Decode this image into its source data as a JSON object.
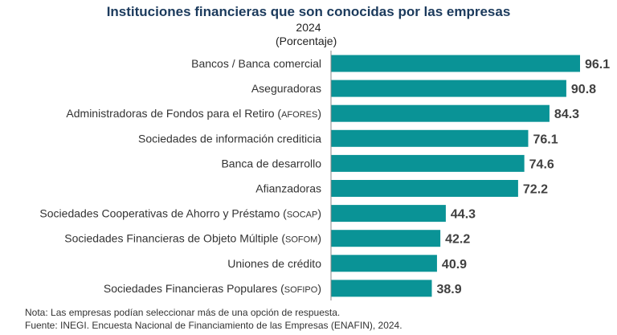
{
  "chart_data": {
    "type": "bar",
    "orientation": "horizontal",
    "title": "Instituciones financieras que son conocidas por las empresas",
    "subtitle": "2024",
    "unit_label": "(Porcentaje)",
    "categories": [
      "Bancos / Banca comercial",
      "Aseguradoras",
      "Administradoras de Fondos para el Retiro (AFORES)",
      "Sociedades de información crediticia",
      "Banca de desarrollo",
      "Afianzadoras",
      "Sociedades Cooperativas de Ahorro y Préstamo (SOCAP)",
      "Sociedades Financieras de Objeto Múltiple (SOFOM)",
      "Uniones de crédito",
      "Sociedades Financieras Populares (SOFIPO)"
    ],
    "values": [
      96.1,
      90.8,
      84.3,
      76.1,
      74.6,
      72.2,
      44.3,
      42.2,
      40.9,
      38.9
    ],
    "value_labels": [
      "96.1",
      "90.8",
      "84.3",
      "76.1",
      "74.6",
      "72.2",
      "44.3",
      "42.2",
      "40.9",
      "38.9"
    ],
    "xlim": [
      0,
      100
    ],
    "grid": false,
    "legend": "none",
    "bar_color": "#0a9396"
  },
  "notes": {
    "nota": "Nota: Las empresas podían seleccionar más de una opción de respuesta.",
    "fuente": "Fuente: INEGI. Encuesta Nacional de Financiamiento de las Empresas (ENAFIN), 2024."
  }
}
